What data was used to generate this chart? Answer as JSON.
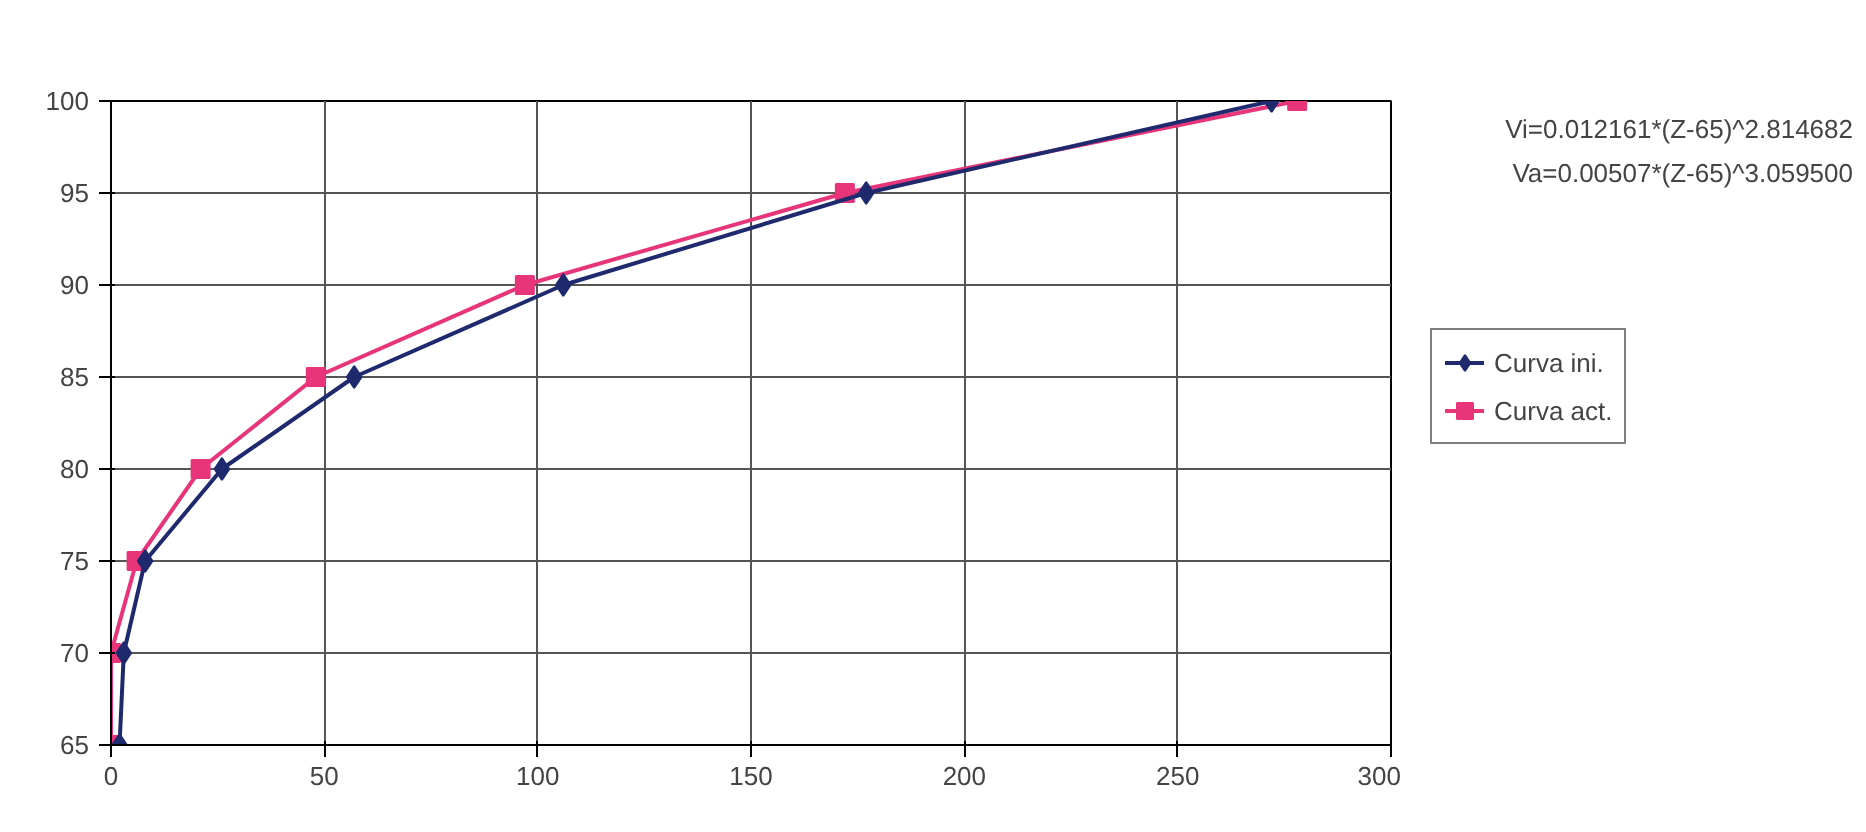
{
  "chart_data": {
    "type": "line",
    "xlim": [
      0,
      300
    ],
    "ylim": [
      65,
      100
    ],
    "xticks": [
      0,
      50,
      100,
      150,
      200,
      250,
      300
    ],
    "yticks": [
      65,
      70,
      75,
      80,
      85,
      90,
      95,
      100
    ],
    "grid": true,
    "legend": "right",
    "line_style": "solid",
    "annotations": [
      "Vi=0.012161*(Z-65)^2.814682",
      "Va=0.00507*(Z-65)^3.059500"
    ],
    "series": [
      {
        "name": "Curva ini.",
        "color": "#1f2a6e",
        "marker": "diamond",
        "x": [
          2,
          3,
          8,
          26,
          57,
          106,
          177,
          272
        ],
        "values": [
          65,
          70,
          75,
          80,
          85,
          90,
          95,
          100
        ]
      },
      {
        "name": "Curva act.",
        "color": "#e8357a",
        "marker": "square",
        "x": [
          0,
          0,
          6,
          21,
          48,
          97,
          172,
          278
        ],
        "values": [
          65,
          70,
          75,
          80,
          85,
          90,
          95,
          100
        ]
      }
    ]
  }
}
